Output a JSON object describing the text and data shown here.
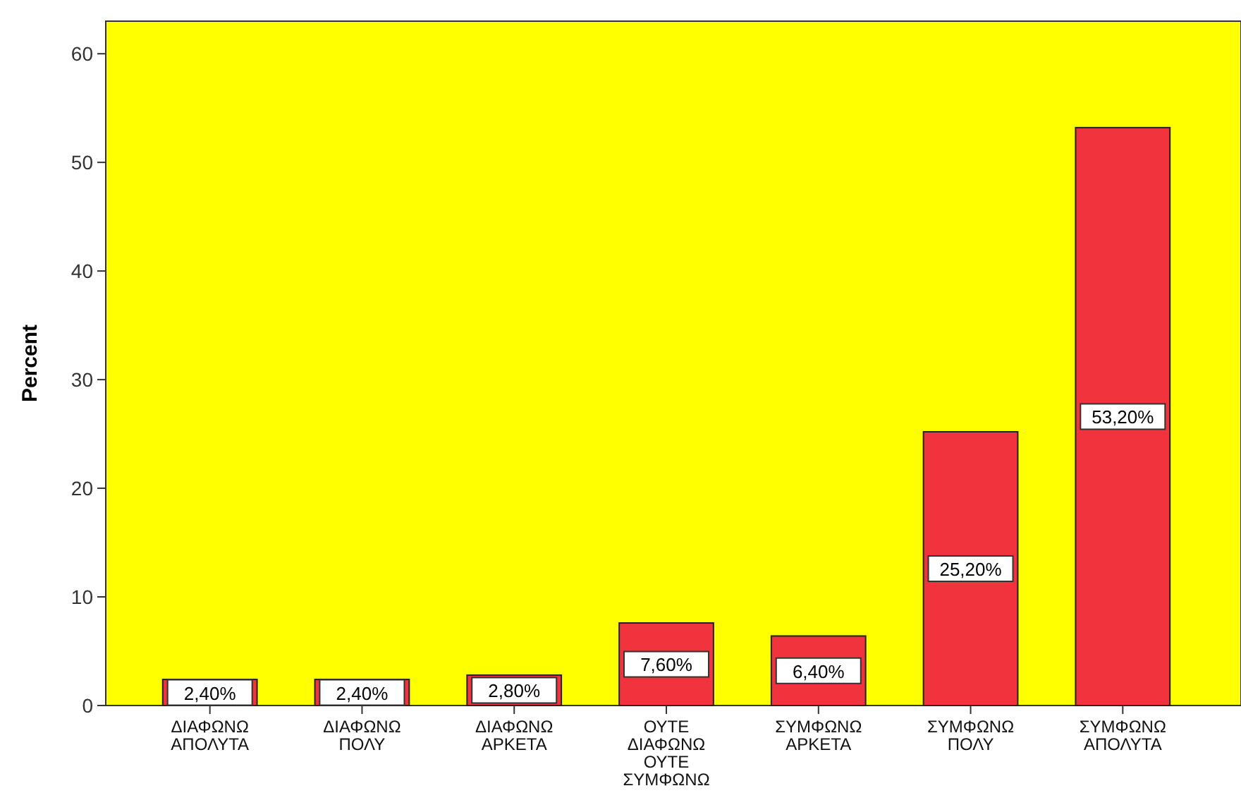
{
  "chart_data": {
    "type": "bar",
    "ylabel": "Percent",
    "categories": [
      "ΔΙΑΦΩΝΩ ΑΠΟΛΥΤΑ",
      "ΔΙΑΦΩΝΩ ΠΟΛΥ",
      "ΔΙΑΦΩΝΩ ΑΡΚΕΤΑ",
      "ΟΥΤΕ ΔΙΑΦΩΝΩ ΟΥΤΕ ΣΥΜΦΩΝΩ",
      "ΣΥΜΦΩΝΩ ΑΡΚΕΤΑ",
      "ΣΥΜΦΩΝΩ ΠΟΛΥ",
      "ΣΥΜΦΩΝΩ ΑΠΟΛΥΤΑ"
    ],
    "values": [
      2.4,
      2.4,
      2.8,
      7.6,
      6.4,
      25.2,
      53.2
    ],
    "value_labels": [
      "2,40%",
      "2,40%",
      "2,80%",
      "7,60%",
      "6,40%",
      "25,20%",
      "53,20%"
    ],
    "color": "#f0333c",
    "ylim": [
      0,
      63
    ],
    "yticks": [
      0,
      10,
      20,
      30,
      40,
      50,
      60
    ],
    "grid": false
  }
}
